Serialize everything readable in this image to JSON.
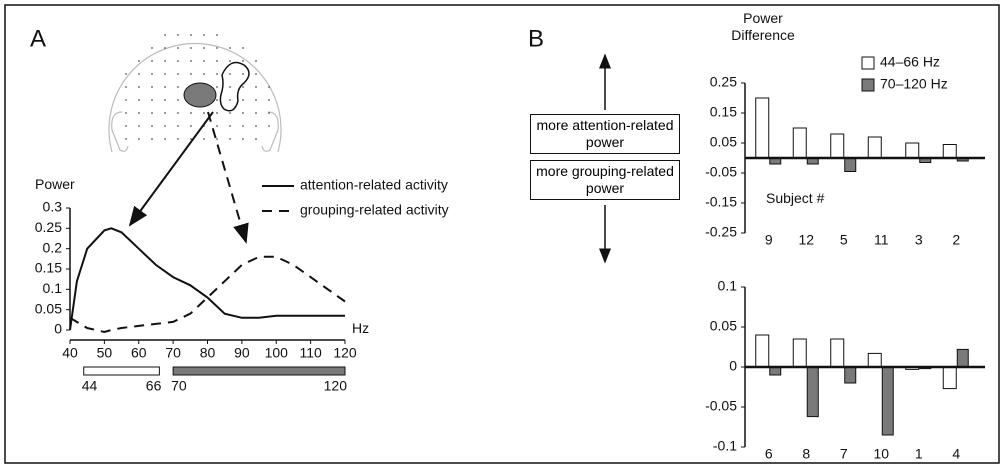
{
  "panel_labels": [
    "A",
    "B"
  ],
  "chart_data": [
    {
      "type": "line",
      "y_label": "Power",
      "x_label": "Hz",
      "x": [
        40,
        42,
        45,
        50,
        52,
        55,
        60,
        65,
        70,
        75,
        80,
        85,
        90,
        95,
        100,
        105,
        110,
        115,
        120
      ],
      "xlim": [
        40,
        120
      ],
      "xticks": [
        40,
        50,
        60,
        70,
        80,
        90,
        100,
        110,
        120
      ],
      "ylim": [
        0,
        0.3
      ],
      "yticks": [
        0,
        0.05,
        0.1,
        0.15,
        0.2,
        0.25,
        0.3
      ],
      "series": [
        {
          "name": "attention-related activity",
          "color": "#111111",
          "dash": "solid",
          "values": [
            0,
            0.12,
            0.2,
            0.245,
            0.25,
            0.24,
            0.2,
            0.16,
            0.13,
            0.11,
            0.08,
            0.04,
            0.03,
            0.03,
            0.035,
            0.035,
            0.035,
            0.035,
            0.035
          ]
        },
        {
          "name": "grouping-related activity",
          "color": "#111111",
          "dash": "dashed",
          "values": [
            0.03,
            0.02,
            0.005,
            -0.005,
            0,
            0.005,
            0.01,
            0.015,
            0.02,
            0.04,
            0.08,
            0.12,
            0.16,
            0.18,
            0.18,
            0.16,
            0.13,
            0.1,
            0.07
          ]
        }
      ],
      "bands": [
        {
          "range": [
            44,
            66
          ],
          "color": "#ffffff"
        },
        {
          "range": [
            70,
            120
          ],
          "color": "#7a7a7a"
        }
      ]
    },
    {
      "type": "bar",
      "y_label": "Power Difference",
      "x_label": "Subject #",
      "categories": [
        "9",
        "12",
        "5",
        "11",
        "3",
        "2"
      ],
      "ylim": [
        -0.25,
        0.25
      ],
      "yticks": [
        0.25,
        0.15,
        0.05,
        -0.05,
        -0.15,
        -0.25
      ],
      "series": [
        {
          "name": "44–66 Hz",
          "color": "#ffffff",
          "values": [
            0.2,
            0.1,
            0.08,
            0.07,
            0.05,
            0.045
          ]
        },
        {
          "name": "70–120 Hz",
          "color": "#7a7a7a",
          "values": [
            -0.02,
            -0.02,
            -0.045,
            0,
            -0.015,
            -0.01
          ]
        }
      ],
      "annotations": [
        "more attention-related power",
        "more grouping-related power"
      ]
    },
    {
      "type": "bar",
      "categories": [
        "6",
        "8",
        "7",
        "10",
        "1",
        "4"
      ],
      "ylim": [
        -0.1,
        0.1
      ],
      "yticks": [
        0.1,
        0.05,
        0,
        -0.05,
        -0.1
      ],
      "series": [
        {
          "color": "#ffffff",
          "values": [
            0.04,
            0.035,
            0.035,
            0.017,
            -0.003,
            -0.027
          ]
        },
        {
          "color": "#7a7a7a",
          "values": [
            -0.01,
            -0.062,
            -0.02,
            -0.085,
            -0.002,
            0.022
          ]
        }
      ]
    }
  ]
}
